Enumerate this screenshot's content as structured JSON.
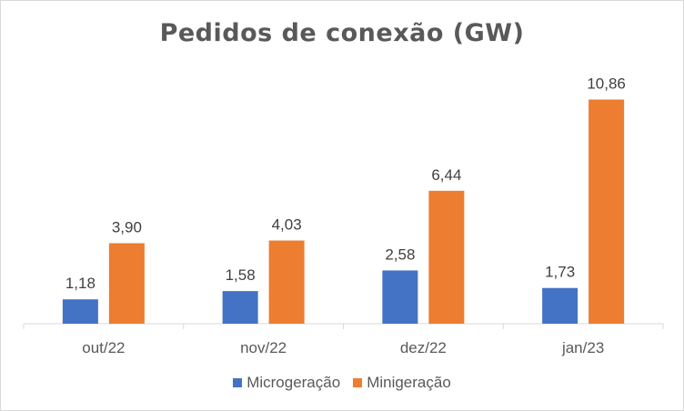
{
  "chart_data": {
    "type": "bar",
    "title": "Pedidos de conexão (GW)",
    "categories": [
      "out/22",
      "nov/22",
      "dez/22",
      "jan/23"
    ],
    "series": [
      {
        "name": "Microgeração",
        "values": [
          1.18,
          1.58,
          2.58,
          1.73
        ],
        "labels": [
          "1,18",
          "1,58",
          "2,58",
          "1,73"
        ],
        "color": "#4472C4"
      },
      {
        "name": "Minigeração",
        "values": [
          3.9,
          4.03,
          6.44,
          10.86
        ],
        "labels": [
          "3,90",
          "4,03",
          "6,44",
          "10,86"
        ],
        "color": "#ED7D31"
      }
    ],
    "ylim": [
      0,
      12
    ],
    "grid": false,
    "legend": "bottom"
  }
}
